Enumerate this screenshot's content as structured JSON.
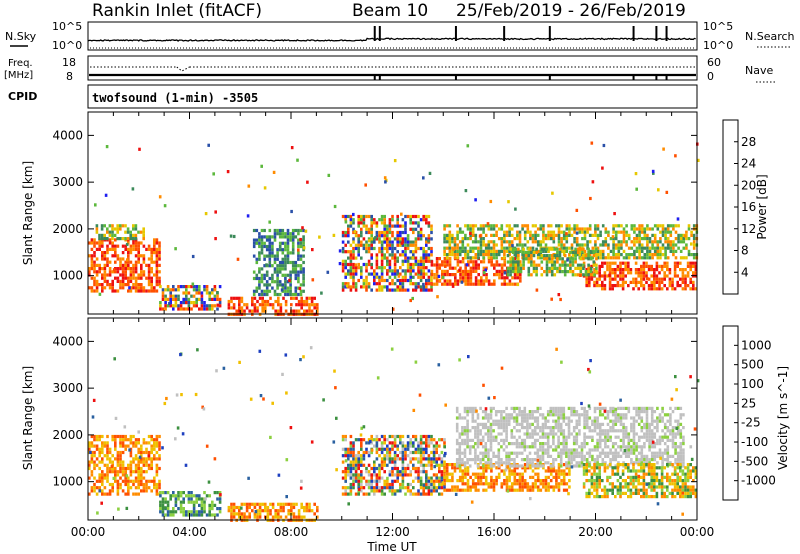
{
  "header": {
    "station": "Rankin Inlet (fitACF)",
    "beam": "Beam 10",
    "dates": "25/Feb/2019 - 26/Feb/2019"
  },
  "top_panels": {
    "nsky_label": "N.Sky",
    "nsky_top": "10^5",
    "nsky_bottom": "10^0",
    "nsky_right_top": "10^5",
    "nsky_right_bottom": "10^0",
    "nsearch_label": "N.Search",
    "freq_label": "Freq.",
    "freq_unit": "[MHz]",
    "freq_top": "18",
    "freq_bottom": "8",
    "nave_top": "60",
    "nave_bottom": "0",
    "nave_label": "Nave",
    "cpid_label": "CPID",
    "cpid_value": "twofsound (1-min) -3505"
  },
  "colors": {
    "power": [
      "#1e1ef0",
      "#2a50a8",
      "#3c8a5a",
      "#5cb83c",
      "#e6c800",
      "#ff8c00",
      "#ff5000",
      "#ee1010"
    ],
    "velocity": [
      "#ee1010",
      "#ff5000",
      "#ff8c00",
      "#f0c000",
      "#c0c0c0",
      "#8cd040",
      "#3c9040",
      "#2a60a0",
      "#1e40c0"
    ]
  },
  "chart_data": [
    {
      "type": "heatmap",
      "name": "power",
      "x_axis_label": "",
      "y_axis_label": "Slant Range [km]",
      "x_ticks": [
        "00:00",
        "04:00",
        "08:00",
        "12:00",
        "16:00",
        "20:00",
        "00:00"
      ],
      "y_ticks": [
        "1000",
        "2000",
        "3000",
        "4000"
      ],
      "xlim_hours": [
        0,
        24
      ],
      "ylim_km": [
        180,
        4500
      ],
      "colorbar_label": "Power [dB]",
      "colorbar_ticks": [
        "28",
        "24",
        "20",
        "16",
        "12",
        "8",
        "4"
      ],
      "colorbar_range_db": [
        0,
        32
      ],
      "regions": [
        {
          "t0": 0.0,
          "t1": 2.8,
          "r0": 700,
          "r1": 1800,
          "level": "strong"
        },
        {
          "t0": 0.3,
          "t1": 2.2,
          "r0": 1800,
          "r1": 2100,
          "level": "mid"
        },
        {
          "t0": 2.8,
          "t1": 5.2,
          "r0": 300,
          "r1": 800,
          "level": "mixed"
        },
        {
          "t0": 5.5,
          "t1": 9.0,
          "r0": 180,
          "r1": 550,
          "level": "strong"
        },
        {
          "t0": 6.5,
          "t1": 8.5,
          "r0": 600,
          "r1": 2000,
          "level": "weak"
        },
        {
          "t0": 10.0,
          "t1": 13.5,
          "r0": 700,
          "r1": 2300,
          "level": "mixed"
        },
        {
          "t0": 13.5,
          "t1": 17.0,
          "r0": 800,
          "r1": 1400,
          "level": "strong"
        },
        {
          "t0": 14.0,
          "t1": 24.0,
          "r0": 1400,
          "r1": 2100,
          "level": "mid"
        },
        {
          "t0": 19.5,
          "t1": 24.0,
          "r0": 700,
          "r1": 1300,
          "level": "strong"
        },
        {
          "t0": 16.5,
          "t1": 20.0,
          "r0": 1000,
          "r1": 1600,
          "level": "mid"
        }
      ]
    },
    {
      "type": "heatmap",
      "name": "velocity",
      "x_axis_label": "Time UT",
      "y_axis_label": "Slant Range [km]",
      "x_ticks": [
        "00:00",
        "04:00",
        "08:00",
        "12:00",
        "16:00",
        "20:00",
        "00:00"
      ],
      "y_ticks": [
        "1000",
        "2000",
        "3000",
        "4000"
      ],
      "xlim_hours": [
        0,
        24
      ],
      "ylim_km": [
        180,
        4500
      ],
      "colorbar_label": "Velocity [m s^-1]",
      "colorbar_ticks": [
        "1000",
        "500",
        "100",
        "25",
        "-25",
        "-100",
        "-500",
        "-1000"
      ],
      "regions": [
        {
          "t0": 0.0,
          "t1": 2.8,
          "r0": 700,
          "r1": 2000,
          "level": "orange"
        },
        {
          "t0": 2.8,
          "t1": 5.2,
          "r0": 300,
          "r1": 800,
          "level": "green"
        },
        {
          "t0": 5.5,
          "t1": 9.0,
          "r0": 180,
          "r1": 550,
          "level": "orange"
        },
        {
          "t0": 10.0,
          "t1": 14.0,
          "r0": 700,
          "r1": 2000,
          "level": "mixed"
        },
        {
          "t0": 14.0,
          "t1": 19.0,
          "r0": 800,
          "r1": 1400,
          "level": "orange"
        },
        {
          "t0": 14.5,
          "t1": 23.5,
          "r0": 1300,
          "r1": 2600,
          "level": "gray"
        },
        {
          "t0": 19.5,
          "t1": 24.0,
          "r0": 700,
          "r1": 1400,
          "level": "orangegreen"
        }
      ]
    }
  ]
}
